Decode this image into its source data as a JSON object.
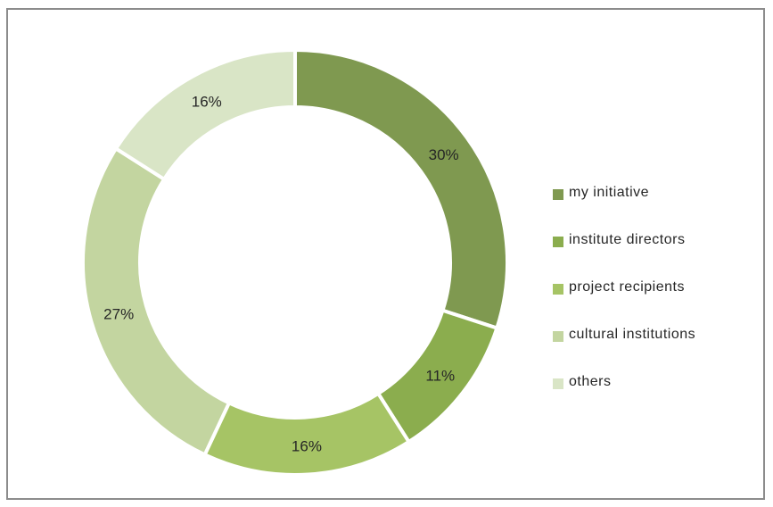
{
  "chart_data": {
    "type": "pie",
    "donut": true,
    "categories": [
      "my initiative",
      "institute directors",
      "project recipients",
      "cultural institutions",
      "others"
    ],
    "values": [
      30,
      11,
      16,
      27,
      16
    ],
    "labels": [
      "30%",
      "11%",
      "16%",
      "27%",
      "16%"
    ],
    "colors": [
      "#7f9950",
      "#8bad4e",
      "#a6c465",
      "#c3d5a0",
      "#d9e5c6"
    ],
    "legend_position": "right",
    "start_angle_deg": 0,
    "direction": "clockwise"
  }
}
